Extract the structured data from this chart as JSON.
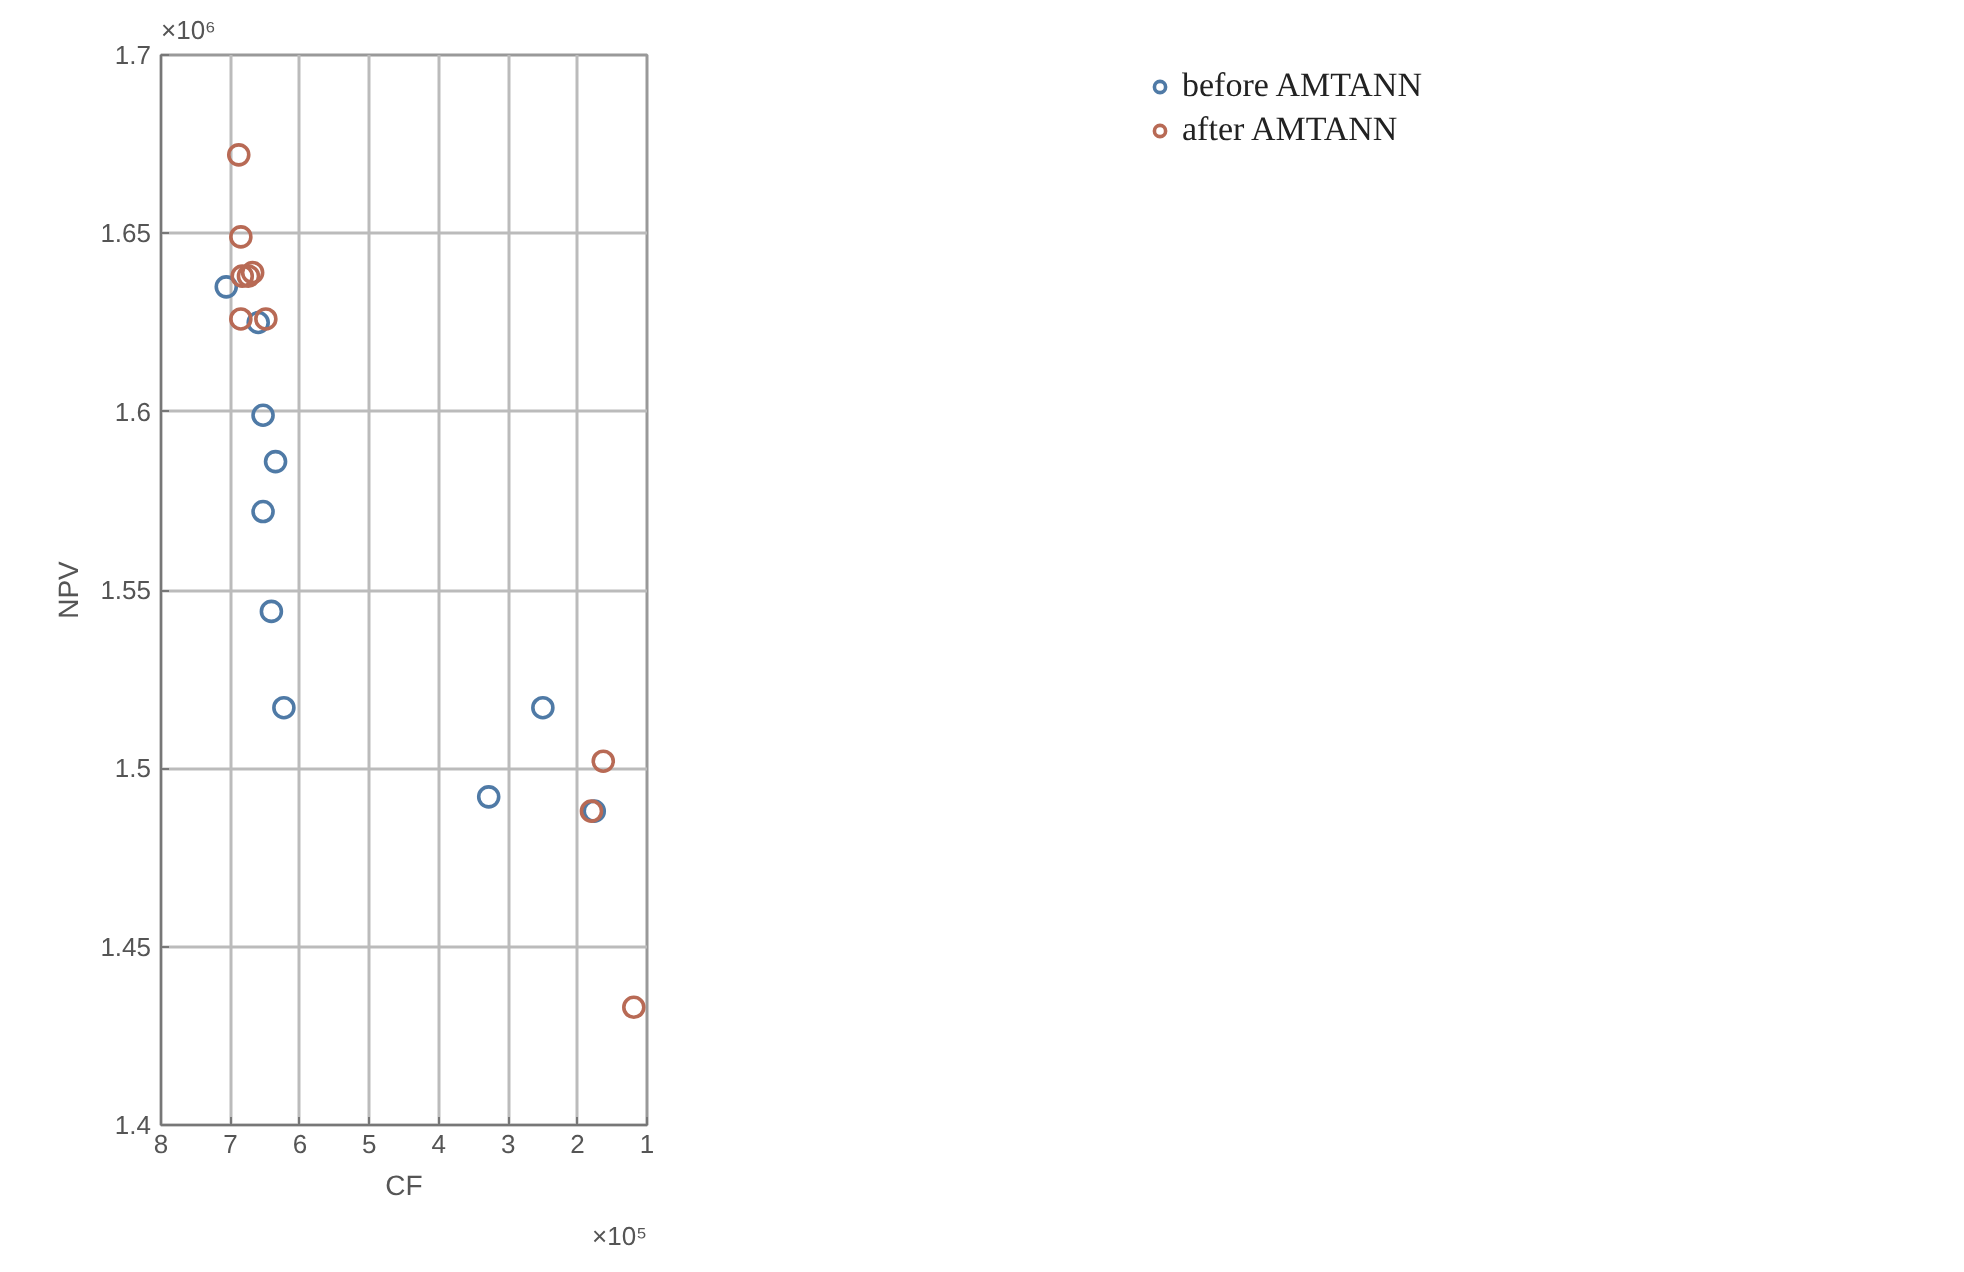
{
  "chart_data": {
    "type": "scatter",
    "xlabel": "CF",
    "ylabel": "NPV",
    "xlim": [
      8,
      1
    ],
    "ylim": [
      1.4,
      1.7
    ],
    "xticks": [
      8,
      7,
      6,
      5,
      4,
      3,
      2,
      1
    ],
    "yticks": [
      1.4,
      1.45,
      1.5,
      1.55,
      1.6,
      1.65,
      1.7
    ],
    "annotations": [
      "×10⁶",
      "×10⁵"
    ],
    "grid": true,
    "legend": "top right",
    "marker": "circle",
    "series": [
      {
        "name": "before AMTANN",
        "color": "#4f7aa6",
        "x": [
          7.06,
          6.6,
          6.53,
          6.35,
          6.53,
          6.41,
          6.23,
          3.28,
          2.5,
          1.76
        ],
        "values": [
          1.635,
          1.625,
          1.599,
          1.586,
          1.572,
          1.544,
          1.517,
          1.492,
          1.517,
          1.488
        ]
      },
      {
        "name": "after AMTANN",
        "color": "#b86a55",
        "x": [
          6.88,
          6.85,
          6.83,
          6.74,
          6.68,
          6.85,
          6.49,
          1.8,
          1.63,
          1.19
        ],
        "values": [
          1.672,
          1.649,
          1.638,
          1.638,
          1.639,
          1.626,
          1.626,
          1.488,
          1.502,
          1.433
        ]
      }
    ]
  }
}
